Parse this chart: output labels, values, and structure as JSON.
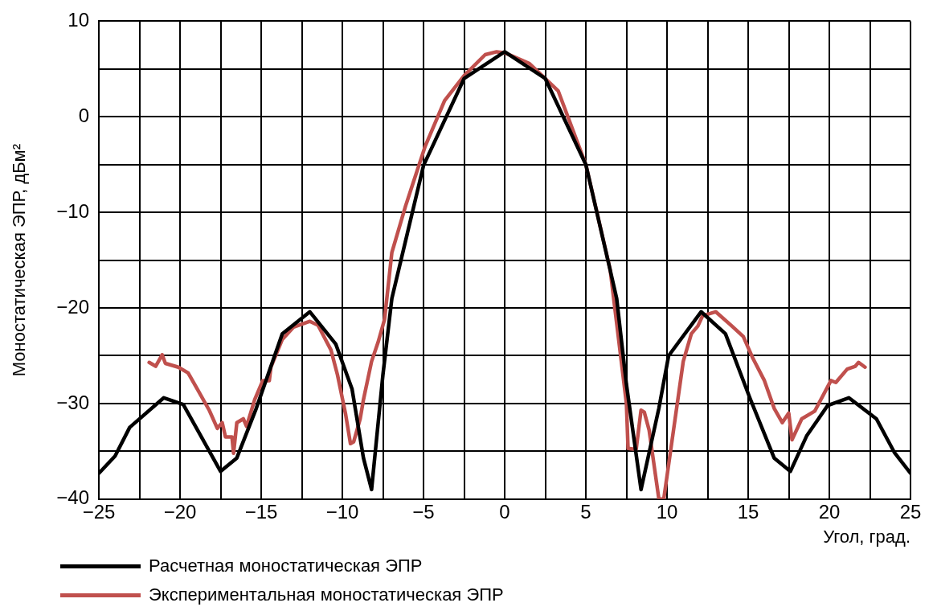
{
  "chart_data": {
    "type": "line",
    "xlabel": "Угол, град.",
    "ylabel": "Моностатическая ЭПР, дБм²",
    "xlim": [
      -25,
      25
    ],
    "ylim": [
      -40,
      10
    ],
    "xticks": [
      -25,
      {
        "value": -22.5,
        "label": null
      },
      -20,
      {
        "value": -17.5,
        "label": null
      },
      -15,
      {
        "value": -12.5,
        "label": null
      },
      -10,
      {
        "value": -7.5,
        "label": null
      },
      -5,
      {
        "value": -2.5,
        "label": null
      },
      0,
      {
        "value": 2.5,
        "label": null
      },
      5,
      {
        "value": 7.5,
        "label": null
      },
      10,
      {
        "value": 12.5,
        "label": null
      },
      15,
      {
        "value": 17.5,
        "label": null
      },
      20,
      {
        "value": 22.5,
        "label": null
      },
      25
    ],
    "yticks": [
      -40,
      {
        "value": -35,
        "label": null
      },
      -30,
      {
        "value": -25,
        "label": null
      },
      -20,
      {
        "value": -15,
        "label": null
      },
      -10,
      {
        "value": -5,
        "label": null
      },
      0,
      {
        "value": 5,
        "label": null
      },
      10
    ],
    "grid": true,
    "legend": "bottom left",
    "marker": "none",
    "line_style": "solid",
    "series": [
      {
        "name": "Расчетная моностатическая ЭПР",
        "color": "#000000",
        "x": [
          -25,
          -24,
          -23.1,
          -21,
          -19.8,
          -17.5,
          -16.5,
          -15.3,
          -13.7,
          -12,
          -10.4,
          -9.4,
          -8.7,
          -8.2,
          -7.5,
          -6.95,
          -5,
          -2.5,
          0,
          2.5,
          5,
          6.9,
          7.5,
          8.4,
          9.5,
          10.1,
          12.1,
          13.6,
          15.1,
          16.6,
          17.6,
          18.6,
          19.9,
          21.2,
          22.9,
          24,
          25
        ],
        "values": [
          -37.3,
          -35.5,
          -32.5,
          -29.4,
          -30.1,
          -37.1,
          -35.7,
          -30.5,
          -22.7,
          -20.4,
          -23.8,
          -28.5,
          -35.7,
          -39,
          -27,
          -19,
          -5.1,
          4,
          6.8,
          4,
          -5,
          -19,
          -28,
          -39,
          -30.5,
          -25,
          -20.4,
          -22.7,
          -29.4,
          -35.7,
          -37.1,
          -33.4,
          -30.2,
          -29.4,
          -31.6,
          -35.1,
          -37.3
        ]
      },
      {
        "name": "Экспериментальная моностатическая ЭПР",
        "color": "#c0504d",
        "x": [
          -21.9,
          -21.5,
          -21.1,
          -20.9,
          -20.1,
          -19.5,
          -19,
          -18.2,
          -17.7,
          -17.4,
          -17.2,
          -16.8,
          -16.7,
          -16.5,
          -16.1,
          -15.9,
          -15.4,
          -14.9,
          -14.5,
          -14.4,
          -13.7,
          -13,
          -12,
          -11.5,
          -10.7,
          -10.3,
          -9.8,
          -9.5,
          -9.3,
          -8.9,
          -8.7,
          -8.2,
          -7.8,
          -7.4,
          -6.95,
          -6.1,
          -4.9,
          -3.7,
          -2.5,
          -1.2,
          -0.5,
          0,
          1.5,
          3.3,
          5,
          6.5,
          7.5,
          7.6,
          8.1,
          8.4,
          8.6,
          8.9,
          9.5,
          9.8,
          10.4,
          11,
          11.5,
          11.9,
          12.2,
          13,
          14,
          14.7,
          15.3,
          16,
          16.6,
          17.1,
          17.5,
          17.7,
          18.3,
          19.1,
          20.1,
          20.4,
          21.1,
          21.6,
          21.8,
          22.2
        ],
        "values": [
          -25.7,
          -26.1,
          -24.9,
          -25.8,
          -26.2,
          -26.8,
          -28.3,
          -30.7,
          -32.6,
          -32,
          -33.5,
          -33.5,
          -35.2,
          -32,
          -31.6,
          -32.4,
          -29.6,
          -27.6,
          -27.6,
          -26.2,
          -23.3,
          -22,
          -21.4,
          -21.8,
          -24.4,
          -27,
          -31.1,
          -34.2,
          -34,
          -31.6,
          -29.6,
          -25.6,
          -23.6,
          -21.2,
          -14.2,
          -9.3,
          -3.1,
          1.7,
          4.3,
          6.5,
          6.8,
          6.7,
          5.6,
          2.7,
          -5,
          -16,
          -30,
          -34.7,
          -34.8,
          -30.7,
          -30.9,
          -32.8,
          -40,
          -40,
          -32.8,
          -25.6,
          -22.7,
          -21.9,
          -20.8,
          -20.4,
          -21.9,
          -23,
          -25.3,
          -27.6,
          -30.5,
          -32,
          -31,
          -33.8,
          -31.6,
          -30.8,
          -27.6,
          -27.8,
          -26.4,
          -26.1,
          -25.7,
          -26.2
        ]
      }
    ]
  }
}
